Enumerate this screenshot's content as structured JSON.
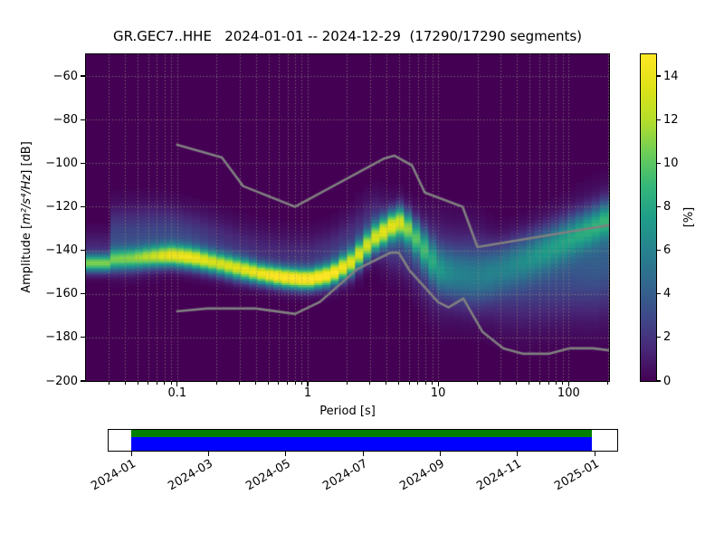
{
  "title": "GR.GEC7..HHE   2024-01-01 -- 2024-12-29  (17290/17290 segments)",
  "axes": {
    "xlabel": "Period [s]",
    "ylabel_prefix": "Amplitude [",
    "ylabel_math": "m²/s⁴/Hz",
    "ylabel_suffix": "] [dB]",
    "colorbar_label": "[%]"
  },
  "chart_data": {
    "type": "heatmap",
    "title": "GR.GEC7..HHE   2024-01-01 -- 2024-12-29  (17290/17290 segments)",
    "xlabel": "Period [s]",
    "ylabel": "Amplitude [m²/s⁴/Hz] [dB]",
    "x_scale": "log",
    "xlim": [
      0.02,
      204
    ],
    "ylim": [
      -200,
      -50
    ],
    "grid": true,
    "colormap": "viridis",
    "background_color": "#440154",
    "colorbar_label": "[%]",
    "colorbar_range": [
      0,
      15
    ],
    "colorbar_ticks": [
      0,
      2,
      4,
      6,
      8,
      10,
      12,
      14
    ],
    "x_tick_values": [
      0.1,
      1,
      10,
      100
    ],
    "x_tick_labels": [
      "0.1",
      "1",
      "10",
      "100"
    ],
    "y_tick_values": [
      -60,
      -80,
      -100,
      -120,
      -140,
      -160,
      -180,
      -200
    ],
    "ridge": {
      "comment": "PPSD probability ridge: mode dB, peak probability %, gaussian widths, plus secondary halo lobe (offset dB relative to mode)",
      "period": [
        0.02,
        0.0299,
        0.0301,
        0.045,
        0.065,
        0.09,
        0.13,
        0.2,
        0.3,
        0.45,
        0.65,
        1.0,
        1.5,
        2.2,
        3.2,
        4.7,
        5.3,
        6.3,
        8.0,
        10,
        13,
        20,
        30,
        45,
        70,
        110,
        160,
        204
      ],
      "mode_db": [
        -146,
        -146,
        -144.5,
        -144,
        -143,
        -142.5,
        -143.5,
        -146,
        -148.5,
        -151,
        -152.5,
        -153.5,
        -151.5,
        -145.5,
        -135,
        -127.5,
        -127,
        -131.5,
        -140,
        -148.5,
        -151,
        -152.5,
        -148,
        -144,
        -139,
        -133,
        -128.5,
        -125
      ],
      "peak_pct": [
        10,
        10,
        9,
        9.5,
        11,
        13,
        13,
        12,
        12.5,
        13.5,
        15,
        15,
        14,
        12,
        11,
        11.5,
        11,
        8,
        6.5,
        5,
        4.2,
        3.8,
        4.5,
        5,
        5.5,
        6,
        6.5,
        7
      ],
      "sigma_db": [
        2.8,
        2.8,
        3.5,
        3.5,
        3.5,
        3.5,
        3.5,
        3.5,
        3.5,
        3.2,
        3.2,
        3.2,
        3.5,
        4.0,
        4.5,
        4.5,
        4.8,
        5,
        6,
        7,
        8,
        9,
        8,
        7.5,
        7,
        6.5,
        6,
        6
      ],
      "halo_off_db": [
        6,
        6,
        10,
        10,
        10,
        10,
        9,
        9,
        8,
        8,
        8,
        8,
        8,
        8,
        6,
        -8,
        -8,
        -8,
        -5,
        0,
        2,
        3,
        -10,
        -12,
        -13,
        -15,
        -17,
        -18
      ],
      "halo_sigma": [
        6,
        6,
        9,
        9,
        9,
        8,
        8,
        8,
        8,
        8,
        8,
        8,
        8,
        9,
        9,
        10,
        10,
        10,
        12,
        14,
        14,
        14,
        12,
        13,
        14,
        15,
        16,
        16
      ],
      "halo_pct": [
        1.5,
        1.5,
        3,
        3,
        3,
        3,
        2.8,
        2.2,
        2,
        1.8,
        1.8,
        2,
        2.5,
        2.5,
        2.5,
        3,
        3,
        3,
        3,
        2.5,
        2,
        2,
        2,
        2.5,
        3,
        3.5,
        4,
        4
      ]
    },
    "noise_models": {
      "color": "#808080",
      "high_model": {
        "period": [
          0.1,
          0.22,
          0.32,
          0.8,
          3.8,
          4.6,
          6.3,
          7.9,
          15.4,
          20.0,
          354.8
        ],
        "db": [
          -91.5,
          -97.4,
          -110.5,
          -120.0,
          -98.0,
          -96.5,
          -101.0,
          -113.5,
          -120.0,
          -138.5,
          -126.0
        ]
      },
      "low_model": {
        "period": [
          0.1,
          0.17,
          0.4,
          0.8,
          1.24,
          2.4,
          4.3,
          5.0,
          6.0,
          10.0,
          12.0,
          15.6,
          21.9,
          31.6,
          45.0,
          70.0,
          101.0,
          154.0,
          328.0
        ],
        "db": [
          -168.0,
          -166.7,
          -166.7,
          -169.2,
          -163.7,
          -148.6,
          -141.1,
          -141.1,
          -149.0,
          -163.8,
          -166.2,
          -162.1,
          -177.5,
          -185.0,
          -187.5,
          -187.5,
          -185.0,
          -185.0,
          -187.5
        ]
      }
    },
    "viridis_stops": [
      "#440154",
      "#482878",
      "#3e4a89",
      "#31688e",
      "#26828e",
      "#1f9e89",
      "#35b779",
      "#6ece58",
      "#b5de2b",
      "#dfe318",
      "#fde725"
    ]
  },
  "timeline": {
    "start": "2024-01-01",
    "end": "2024-12-29",
    "tick_labels": [
      "2024-01",
      "2024-03",
      "2024-05",
      "2024-07",
      "2024-09",
      "2024-11",
      "2025-01"
    ],
    "used_segments_color": "#008000",
    "data_availability_color": "#0000ff"
  }
}
